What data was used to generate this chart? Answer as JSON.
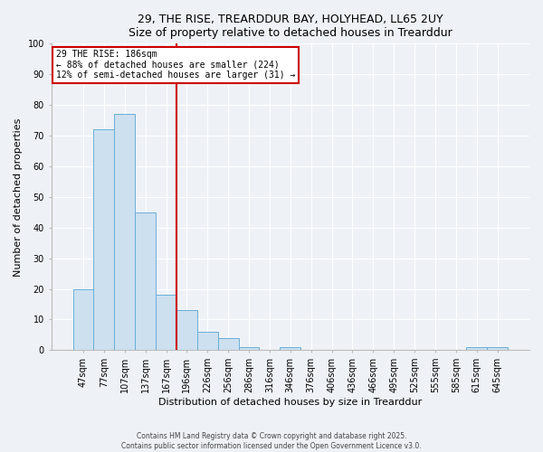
{
  "title1": "29, THE RISE, TREARDDUR BAY, HOLYHEAD, LL65 2UY",
  "title2": "Size of property relative to detached houses in Trearddur",
  "xlabel": "Distribution of detached houses by size in Trearddur",
  "ylabel": "Number of detached properties",
  "footer1": "Contains HM Land Registry data © Crown copyright and database right 2025.",
  "footer2": "Contains public sector information licensed under the Open Government Licence v3.0.",
  "bar_labels": [
    "47sqm",
    "77sqm",
    "107sqm",
    "137sqm",
    "167sqm",
    "196sqm",
    "226sqm",
    "256sqm",
    "286sqm",
    "316sqm",
    "346sqm",
    "376sqm",
    "406sqm",
    "436sqm",
    "466sqm",
    "495sqm",
    "525sqm",
    "555sqm",
    "585sqm",
    "615sqm",
    "645sqm"
  ],
  "bar_values": [
    20,
    72,
    77,
    45,
    18,
    13,
    6,
    4,
    1,
    0,
    1,
    0,
    0,
    0,
    0,
    0,
    0,
    0,
    0,
    1,
    1
  ],
  "bar_color": "#cce0f0",
  "bar_edge_color": "#6aaed6",
  "ylim": [
    0,
    100
  ],
  "yticks": [
    0,
    10,
    20,
    30,
    40,
    50,
    60,
    70,
    80,
    90,
    100
  ],
  "vline_position": 4.5,
  "annotation_title": "29 THE RISE: 186sqm",
  "annotation_line1": "← 88% of detached houses are smaller (224)",
  "annotation_line2": "12% of semi-detached houses are larger (31) →",
  "vline_color": "#cc0000",
  "annotation_box_facecolor": "#ffffff",
  "annotation_box_edgecolor": "#cc0000",
  "bg_color": "#eef2f7",
  "grid_color": "#ffffff",
  "title_fontsize": 9,
  "label_fontsize": 8,
  "tick_fontsize": 7,
  "footer_fontsize": 5.5
}
